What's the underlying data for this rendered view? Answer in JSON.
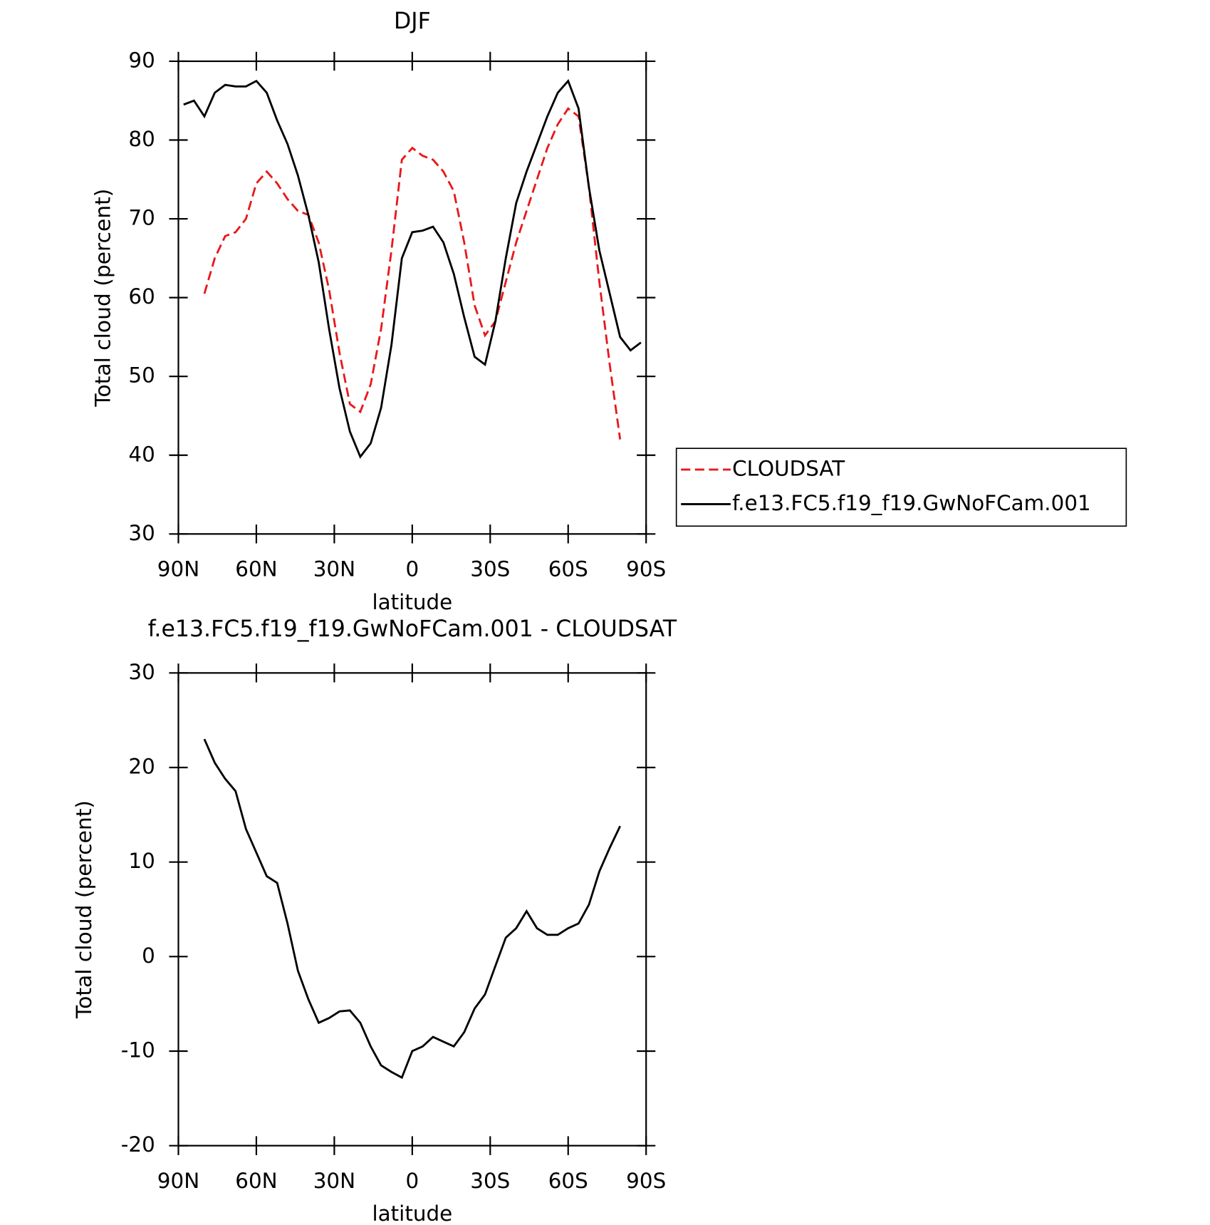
{
  "chart_data": [
    {
      "type": "line",
      "title": "DJF",
      "xlabel": "latitude",
      "ylabel": "Total cloud (percent)",
      "x": [
        88,
        84,
        80,
        76,
        72,
        68,
        64,
        60,
        56,
        52,
        48,
        44,
        40,
        36,
        32,
        28,
        24,
        20,
        16,
        12,
        8,
        4,
        0,
        -4,
        -8,
        -12,
        -16,
        -20,
        -24,
        -28,
        -32,
        -36,
        -40,
        -44,
        -48,
        -52,
        -56,
        -60,
        -64,
        -68,
        -72,
        -76,
        -80,
        -84,
        -88
      ],
      "series": [
        {
          "name": "CLOUDSAT",
          "color": "#e8181b",
          "dash": true,
          "values": [
            null,
            null,
            60.5,
            65.0,
            67.8,
            68.3,
            70.0,
            74.5,
            76.0,
            74.5,
            72.5,
            71.0,
            70.5,
            67.0,
            61.0,
            53.0,
            46.5,
            45.5,
            49.0,
            56.0,
            66.0,
            77.5,
            79.0,
            78.0,
            77.5,
            76.0,
            73.5,
            67.0,
            59.0,
            55.2,
            57.0,
            62.0,
            67.0,
            71.0,
            75.0,
            79.0,
            82.0,
            84.0,
            83.0,
            74.0,
            62.0,
            51.5,
            42.0,
            null,
            null
          ]
        },
        {
          "name": "f.e13.FC5.f19_f19.GwNoFCam.001",
          "color": "#000000",
          "dash": false,
          "values": [
            84.5,
            85.0,
            83.0,
            86.0,
            87.0,
            86.8,
            86.8,
            87.5,
            86.0,
            82.5,
            79.5,
            75.5,
            70.5,
            64.5,
            56.0,
            48.5,
            43.0,
            39.8,
            41.5,
            46.0,
            54.0,
            65.0,
            68.3,
            68.5,
            69.0,
            67.0,
            63.0,
            57.5,
            52.5,
            51.5,
            57.0,
            65.0,
            72.0,
            76.0,
            79.5,
            83.0,
            86.0,
            87.5,
            84.0,
            74.0,
            66.0,
            60.5,
            55.0,
            53.3,
            54.3
          ]
        }
      ],
      "xlim": [
        90,
        -90
      ],
      "xticks": [
        {
          "value": 90,
          "label": "90N"
        },
        {
          "value": 60,
          "label": "60N"
        },
        {
          "value": 30,
          "label": "30N"
        },
        0,
        {
          "value": -30,
          "label": "30S"
        },
        {
          "value": -60,
          "label": "60S"
        },
        {
          "value": -90,
          "label": "90S"
        }
      ],
      "ylim": [
        30,
        90
      ],
      "yticks": [
        30,
        40,
        50,
        60,
        70,
        80,
        90
      ],
      "legend": "right"
    },
    {
      "type": "line",
      "title": "f.e13.FC5.f19_f19.GwNoFCam.001 - CLOUDSAT",
      "xlabel": "latitude",
      "ylabel": "Total cloud (percent)",
      "x": [
        80,
        76,
        72,
        68,
        64,
        60,
        56,
        52,
        48,
        44,
        40,
        36,
        32,
        28,
        24,
        20,
        16,
        12,
        8,
        4,
        0,
        -4,
        -8,
        -12,
        -16,
        -20,
        -24,
        -28,
        -32,
        -36,
        -40,
        -44,
        -48,
        -52,
        -56,
        -60,
        -64,
        -68,
        -72,
        -76,
        -80
      ],
      "series": [
        {
          "color": "#000000",
          "dash": false,
          "values": [
            23.0,
            20.5,
            18.8,
            17.5,
            13.5,
            11.0,
            8.5,
            7.8,
            3.5,
            -1.5,
            -4.5,
            -7.0,
            -6.5,
            -5.8,
            -5.7,
            -7.0,
            -9.5,
            -11.5,
            -12.2,
            -12.8,
            -10.0,
            -9.5,
            -8.5,
            -9.0,
            -9.5,
            -8.0,
            -5.5,
            -4.0,
            -1.0,
            2.0,
            3.0,
            4.8,
            3.0,
            2.3,
            2.3,
            3.0,
            3.5,
            5.5,
            9.0,
            11.5,
            13.8
          ]
        }
      ],
      "xlim": [
        90,
        -90
      ],
      "xticks": [
        {
          "value": 90,
          "label": "90N"
        },
        {
          "value": 60,
          "label": "60N"
        },
        {
          "value": 30,
          "label": "30N"
        },
        0,
        {
          "value": -30,
          "label": "30S"
        },
        {
          "value": -60,
          "label": "60S"
        },
        {
          "value": -90,
          "label": "90S"
        }
      ],
      "ylim": [
        -20,
        30
      ],
      "yticks": [
        -20,
        -10,
        0,
        10,
        20,
        30
      ]
    }
  ]
}
